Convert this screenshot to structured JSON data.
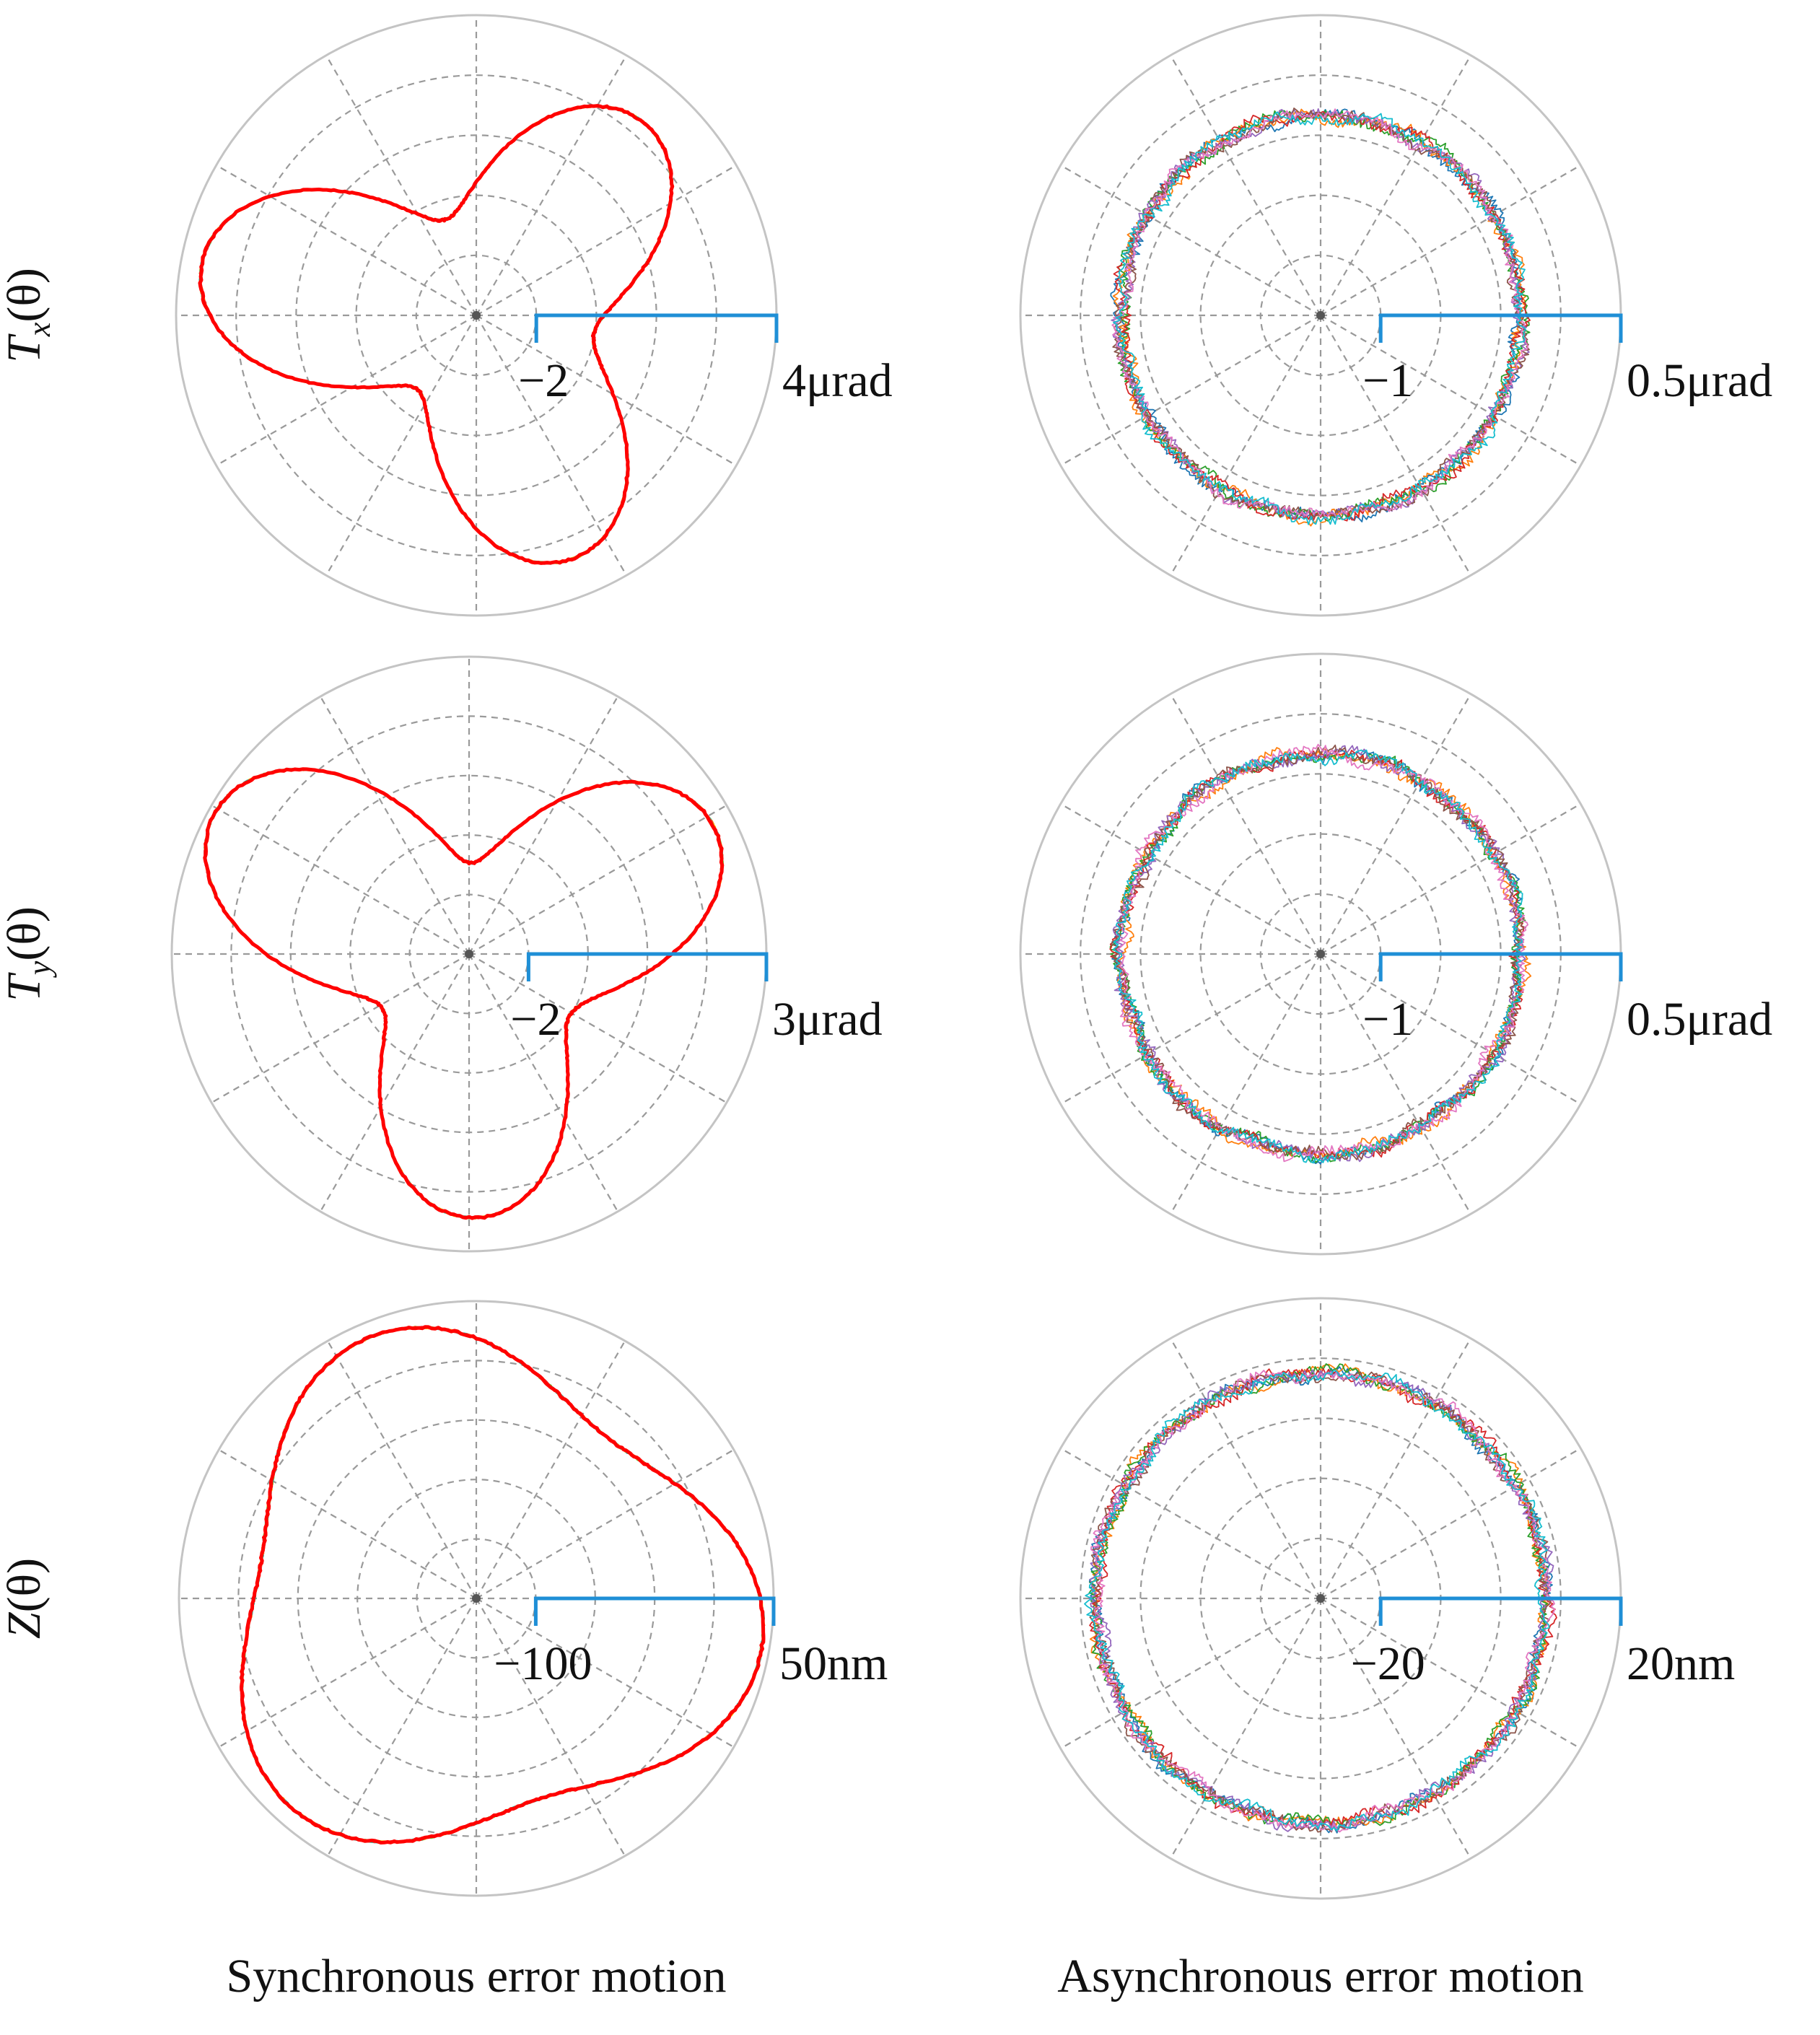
{
  "chart_data": [
    {
      "type": "polar",
      "row_label": "T",
      "row_label_sub": "x",
      "row_label_arg": "(θ)",
      "panel": "synchronous",
      "scale": {
        "min_label": "−2",
        "max_label": "4μrad"
      },
      "rlim": [
        -2,
        4
      ],
      "harmonic": {
        "base": 1.7,
        "amp": 1.6,
        "lobes": 3,
        "phase_deg": -70
      },
      "series_count": 6,
      "series_colors": [
        "#ff8a00",
        "#ffd000",
        "#70d040",
        "#2ec4a8",
        "#e63e3e",
        "#ff0000"
      ]
    },
    {
      "type": "polar",
      "panel": "asynchronous",
      "scale": {
        "min_label": "−1",
        "max_label": "0.5μrad"
      },
      "rlim": [
        -1,
        0.5
      ],
      "harmonic": {
        "base": 0.0,
        "amp": 0.0,
        "lobes": 0,
        "phase_deg": 0
      },
      "series_count": 8,
      "series_colors": [
        "#1f77b4",
        "#ff7f0e",
        "#2ca02c",
        "#d62728",
        "#9467bd",
        "#8c564b",
        "#e377c2",
        "#17becf"
      ]
    },
    {
      "type": "polar",
      "row_label": "T",
      "row_label_sub": "y",
      "row_label_arg": "(θ)",
      "panel": "synchronous",
      "scale": {
        "min_label": "−2",
        "max_label": "3μrad"
      },
      "rlim": [
        -2,
        3
      ],
      "harmonic": {
        "base": 1.2,
        "amp": 1.45,
        "lobes": 3,
        "phase_deg": 150
      },
      "series_count": 6,
      "series_colors": [
        "#ff8a00",
        "#ffd000",
        "#70d040",
        "#2ec4a8",
        "#e63e3e",
        "#ff0000"
      ]
    },
    {
      "type": "polar",
      "panel": "asynchronous",
      "scale": {
        "min_label": "−1",
        "max_label": "0.5μrad"
      },
      "rlim": [
        -1,
        0.5
      ],
      "harmonic": {
        "base": 0.0,
        "amp": 0.0,
        "lobes": 0,
        "phase_deg": 0
      },
      "series_count": 8,
      "series_colors": [
        "#1f77b4",
        "#ff7f0e",
        "#2ca02c",
        "#d62728",
        "#9467bd",
        "#8c564b",
        "#e377c2",
        "#17becf"
      ]
    },
    {
      "type": "polar",
      "row_label": "Z",
      "row_label_sub": "",
      "row_label_arg": "(θ)",
      "panel": "synchronous",
      "scale": {
        "min_label": "−100",
        "max_label": "50nm"
      },
      "rlim": [
        -100,
        50
      ],
      "harmonic": {
        "base": 25,
        "amp": 18,
        "lobes": 3,
        "phase_deg": -10
      },
      "series_count": 6,
      "series_colors": [
        "#ff8a00",
        "#ffd000",
        "#70d040",
        "#2ec4a8",
        "#e63e3e",
        "#ff0000"
      ]
    },
    {
      "type": "polar",
      "panel": "asynchronous",
      "scale": {
        "min_label": "−20",
        "max_label": "20nm"
      },
      "rlim": [
        -20,
        20
      ],
      "harmonic": {
        "base": 10,
        "amp": 0.0,
        "lobes": 0,
        "phase_deg": 0
      },
      "series_count": 8,
      "series_colors": [
        "#1f77b4",
        "#ff7f0e",
        "#2ca02c",
        "#d62728",
        "#9467bd",
        "#8c564b",
        "#e377c2",
        "#17becf"
      ]
    }
  ],
  "column_labels": {
    "left": "Synchronous error motion",
    "right": "Asynchronous error motion"
  }
}
